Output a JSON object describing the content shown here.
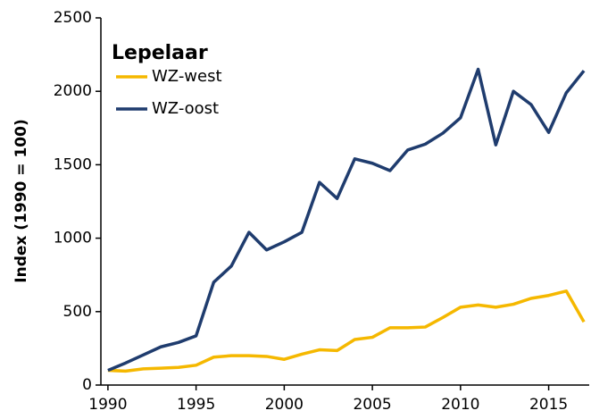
{
  "chart_data": {
    "type": "line",
    "title": "Lepelaar",
    "y_label": "Index (1990 = 100)",
    "x": [
      1990,
      1991,
      1992,
      1993,
      1994,
      1995,
      1996,
      1997,
      1998,
      1999,
      2000,
      2001,
      2002,
      2003,
      2004,
      2005,
      2006,
      2007,
      2008,
      2009,
      2010,
      2011,
      2012,
      2013,
      2014,
      2015,
      2016,
      2017
    ],
    "series": [
      {
        "name": "WZ-west",
        "color": "#f5b800",
        "values": [
          100,
          95,
          110,
          115,
          120,
          135,
          190,
          200,
          200,
          195,
          175,
          210,
          240,
          235,
          310,
          325,
          390,
          390,
          395,
          460,
          530,
          545,
          530,
          550,
          590,
          610,
          640,
          430
        ]
      },
      {
        "name": "WZ-oost",
        "color": "#1f3c6e",
        "values": [
          100,
          150,
          205,
          260,
          290,
          335,
          700,
          810,
          1040,
          920,
          975,
          1040,
          1380,
          1270,
          1540,
          1510,
          1460,
          1600,
          1640,
          1715,
          1820,
          2150,
          1635,
          2000,
          1910,
          1720,
          1990,
          2140
        ]
      }
    ],
    "xlim": [
      1989.6,
      2017.3
    ],
    "xticks": [
      1990,
      1995,
      2000,
      2005,
      2010,
      2015
    ],
    "ylim": [
      0,
      2500
    ],
    "yticks": [
      0,
      500,
      1000,
      1500,
      2000,
      2500
    ],
    "grid": false
  }
}
